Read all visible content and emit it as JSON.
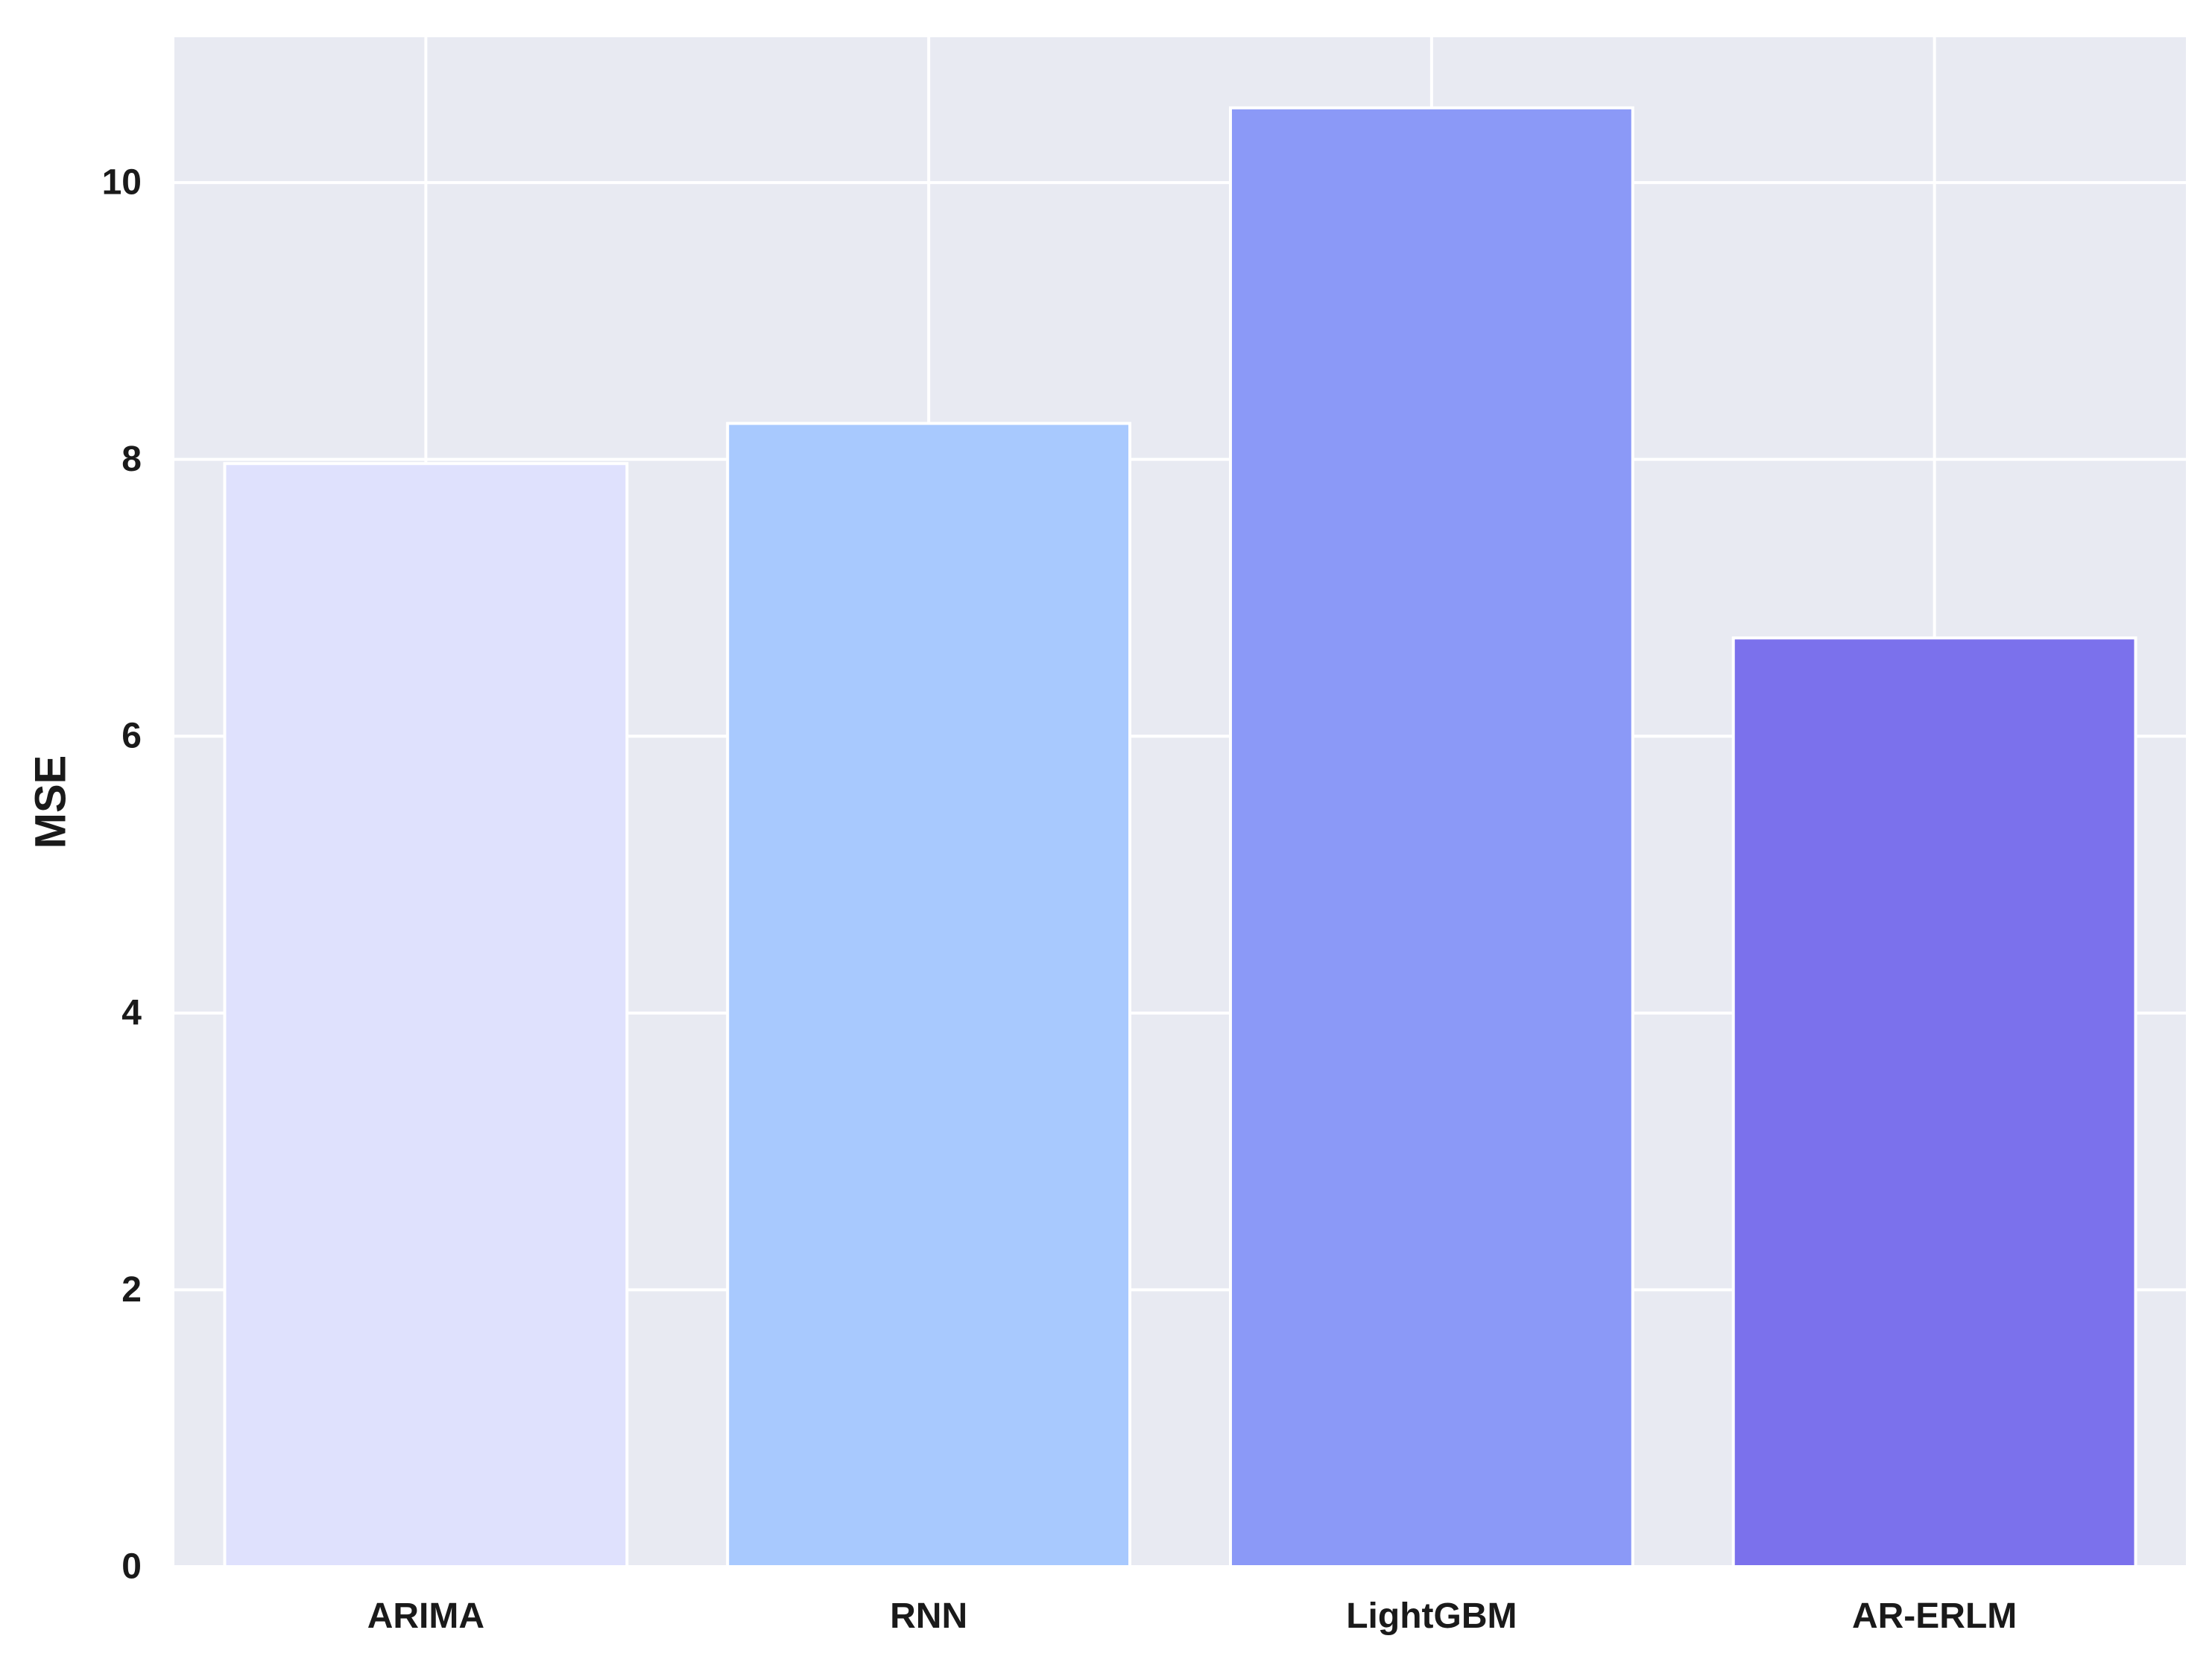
{
  "chart_data": {
    "type": "bar",
    "categories": [
      "ARIMA",
      "RNN",
      "LightGBM",
      "AR-ERLM"
    ],
    "values": [
      7.97,
      8.26,
      10.54,
      6.71
    ],
    "colors": [
      "#dfe1fd",
      "#a8c9fe",
      "#8b99f7",
      "#7b71ec"
    ],
    "title": "",
    "xlabel": "",
    "ylabel": "MSE",
    "ylim": [
      0,
      11.05
    ],
    "yticks": [
      0,
      2,
      4,
      6,
      8,
      10
    ],
    "ytick_labels": [
      "0",
      "2",
      "4",
      "6",
      "8",
      "10"
    ],
    "grid": true,
    "background_color": "#e8eaf2",
    "grid_color": "#ffffff"
  }
}
